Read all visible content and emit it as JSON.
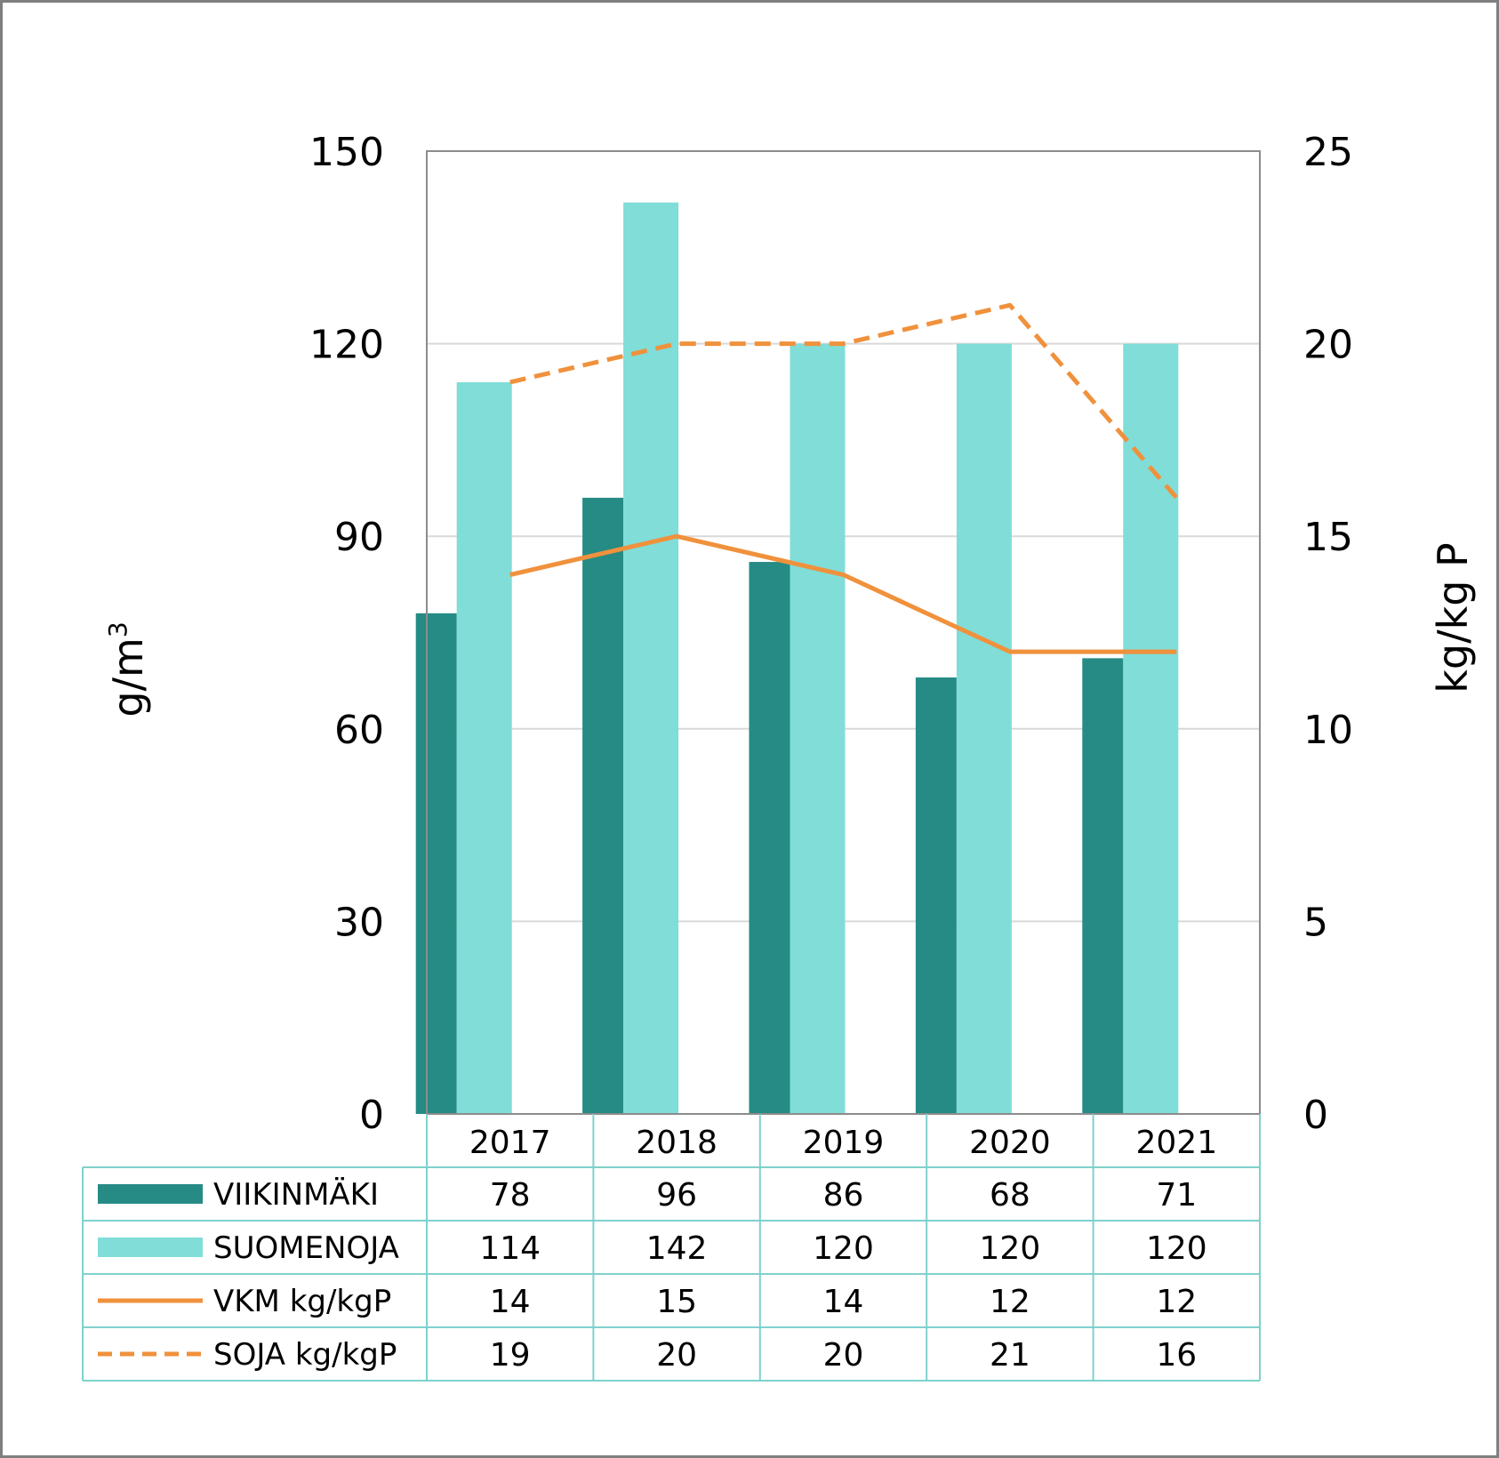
{
  "chart_data": {
    "type": "bar",
    "categories": [
      "2017",
      "2018",
      "2019",
      "2020",
      "2021"
    ],
    "series": [
      {
        "name": "VIIKINMÄKI",
        "kind": "bar",
        "axis": "left",
        "values": [
          78,
          96,
          86,
          68,
          71
        ],
        "color": "#258b84"
      },
      {
        "name": "SUOMENOJA",
        "kind": "bar",
        "axis": "left",
        "values": [
          114,
          142,
          120,
          120,
          120
        ],
        "color": "#80ddd8"
      },
      {
        "name": "VKM kg/kgP",
        "kind": "line",
        "style": "solid",
        "axis": "right",
        "values": [
          14,
          15,
          14,
          12,
          12
        ],
        "color": "#f0913c"
      },
      {
        "name": "SOJA kg/kgP",
        "kind": "line",
        "style": "dashed",
        "axis": "right",
        "values": [
          19,
          20,
          20,
          21,
          16
        ],
        "color": "#f0913c"
      }
    ],
    "ylabel": "g/m",
    "ylabel_sup": "3",
    "ylabel_right": "kg/kg P",
    "ylim": [
      0,
      150
    ],
    "ylim_right": [
      0,
      25
    ],
    "yticks": [
      "0",
      "30",
      "60",
      "90",
      "120",
      "150"
    ],
    "yticks_right": [
      "0",
      "5",
      "10",
      "15",
      "20",
      "25"
    ],
    "grid": true,
    "legend": "data-table"
  }
}
